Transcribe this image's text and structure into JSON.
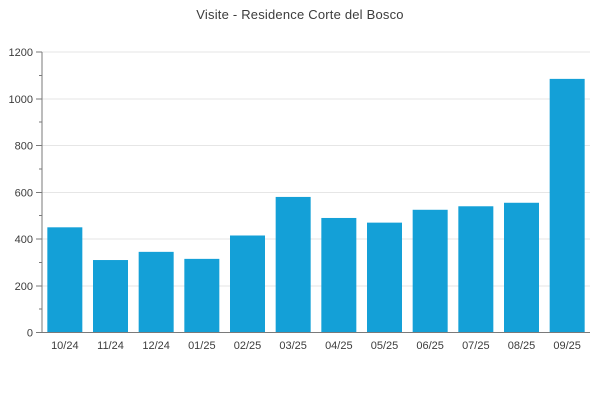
{
  "page": {
    "title": "Visite - Residence Corte del Bosco"
  },
  "chart_data": {
    "type": "bar",
    "title": "Visite - Residence Corte del Bosco",
    "categories": [
      "10/24",
      "11/24",
      "12/24",
      "01/25",
      "02/25",
      "03/25",
      "04/25",
      "05/25",
      "06/25",
      "07/25",
      "08/25",
      "09/25"
    ],
    "values": [
      450,
      310,
      345,
      315,
      415,
      580,
      490,
      470,
      525,
      540,
      555,
      1085
    ],
    "xlabel": "",
    "ylabel": "",
    "ylim": [
      0,
      1200
    ],
    "ytick_step": 200,
    "minor_tick_step": 100,
    "grid": true,
    "legend_position": "none",
    "colors": {
      "bar": "#14a0d7",
      "grid": "#e6e6e6",
      "axis": "#7a7a7a",
      "label": "#3c3c3c",
      "title": "#3c3c3c"
    }
  }
}
